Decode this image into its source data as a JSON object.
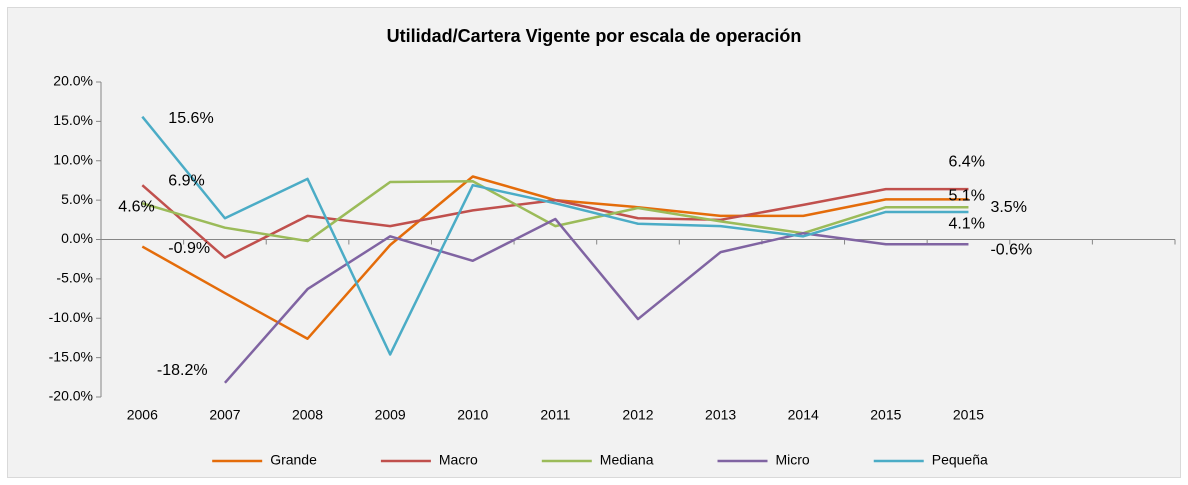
{
  "chart_data": {
    "type": "line",
    "title": "Utilidad/Cartera Vigente por escala de operación",
    "categories": [
      "2006",
      "2007",
      "2008",
      "2009",
      "2010",
      "2011",
      "2012",
      "2013",
      "2014",
      "2015",
      "2015",
      null,
      null
    ],
    "ylim": [
      -20,
      20
    ],
    "yticks": [
      {
        "value": -20,
        "label": "-20.0%"
      },
      {
        "value": -15,
        "label": "-15.0%"
      },
      {
        "value": -10,
        "label": "-10.0%"
      },
      {
        "value": -5,
        "label": "-5.0%"
      },
      {
        "value": 0,
        "label": "0.0%"
      },
      {
        "value": 5,
        "label": "5.0%"
      },
      {
        "value": 10,
        "label": "10.0%"
      },
      {
        "value": 15,
        "label": "15.0%"
      },
      {
        "value": 20,
        "label": "20.0%"
      }
    ],
    "grid": false,
    "legend": "bottom",
    "series": [
      {
        "name": "Grande",
        "color": "#e46c0a",
        "values": [
          -0.9,
          -6.8,
          -12.6,
          -0.7,
          8.0,
          5.0,
          4.1,
          3.0,
          3.0,
          5.1,
          5.1,
          null,
          null
        ],
        "value_labels": [
          "-0.9%",
          null,
          null,
          null,
          null,
          null,
          null,
          null,
          null,
          null,
          "5.1%",
          null,
          null
        ]
      },
      {
        "name": "Macro",
        "color": "#c0504d",
        "values": [
          6.9,
          -2.3,
          3.0,
          1.7,
          3.7,
          5.0,
          2.7,
          2.5,
          4.4,
          6.4,
          6.4,
          null,
          null
        ],
        "value_labels": [
          "6.9%",
          null,
          null,
          null,
          null,
          null,
          null,
          null,
          null,
          null,
          "6.4%",
          null,
          null
        ]
      },
      {
        "name": "Mediana",
        "color": "#9bbb59",
        "values": [
          4.6,
          1.5,
          -0.2,
          7.3,
          7.4,
          1.7,
          4.0,
          2.3,
          0.8,
          4.1,
          4.1,
          null,
          null
        ],
        "value_labels": [
          "4.6%",
          null,
          null,
          null,
          null,
          null,
          null,
          null,
          null,
          null,
          "4.1%",
          null,
          null
        ]
      },
      {
        "name": "Micro",
        "color": "#8064a2",
        "values": [
          null,
          -18.2,
          -6.3,
          0.4,
          -2.7,
          2.6,
          -10.1,
          -1.6,
          0.8,
          -0.6,
          -0.6,
          null,
          null
        ],
        "value_labels": [
          null,
          "-18.2%",
          null,
          null,
          null,
          null,
          null,
          null,
          null,
          null,
          "-0.6%",
          null,
          null
        ]
      },
      {
        "name": "Pequeña",
        "color": "#4bacc6",
        "values": [
          15.6,
          2.7,
          7.7,
          -14.6,
          6.9,
          4.6,
          2.0,
          1.7,
          0.4,
          3.5,
          3.5,
          null,
          null
        ],
        "value_labels": [
          "15.6%",
          null,
          null,
          null,
          null,
          null,
          null,
          null,
          null,
          null,
          "3.5%",
          null,
          null
        ]
      }
    ]
  }
}
